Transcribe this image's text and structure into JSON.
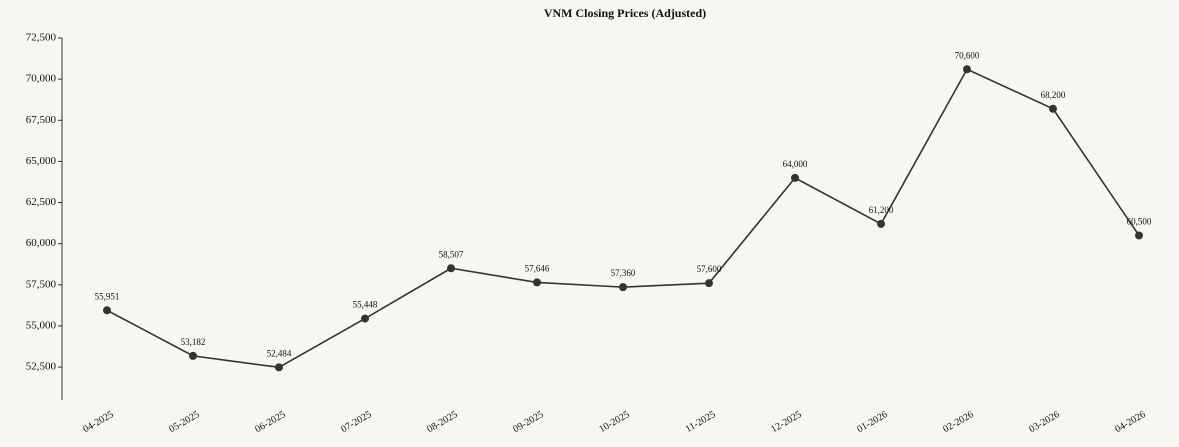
{
  "chart_data": {
    "type": "line",
    "title": "VNM Closing Prices (Adjusted)",
    "categories": [
      "04-2025",
      "05-2025",
      "06-2025",
      "07-2025",
      "08-2025",
      "09-2025",
      "10-2025",
      "11-2025",
      "12-2025",
      "01-2026",
      "02-2026",
      "03-2026",
      "04-2026"
    ],
    "series": [
      {
        "name": "VNM",
        "color": "#333333",
        "values": [
          55951,
          53182,
          52484,
          55448,
          58507,
          57646,
          57360,
          57600,
          64000,
          61200,
          70600,
          68200,
          60500
        ],
        "value_labels": [
          "55,951",
          "53,182",
          "52,484",
          "55,448",
          "58,507",
          "57,646",
          "57,360",
          "57,600",
          "64,000",
          "61,200",
          "70,600",
          "68,200",
          "60,500"
        ]
      }
    ],
    "ylim": [
      50500,
      72500
    ],
    "yticks": [
      {
        "value": 52500,
        "label": "52,500"
      },
      {
        "value": 55000,
        "label": "55,000"
      },
      {
        "value": 57500,
        "label": "57,500"
      },
      {
        "value": 60000,
        "label": "60,000"
      },
      {
        "value": 62500,
        "label": "62,500"
      },
      {
        "value": 65000,
        "label": "65,000"
      },
      {
        "value": 67500,
        "label": "67,500"
      },
      {
        "value": 70000,
        "label": "70,000"
      },
      {
        "value": 72500,
        "label": "72,500"
      }
    ],
    "grid": false
  }
}
